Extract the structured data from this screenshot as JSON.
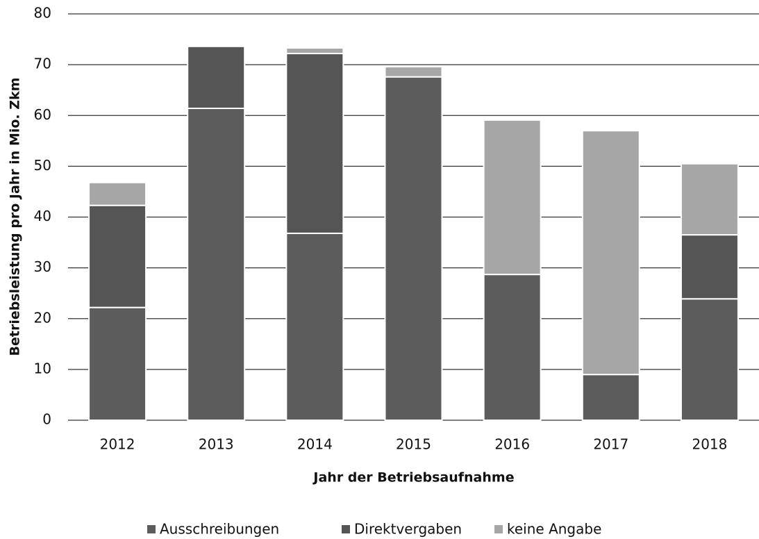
{
  "chart_data": {
    "type": "bar",
    "stacked": true,
    "x_label": "Jahr der Betriebsaufnahme",
    "y_label": "Betriebsleistung pro Jahr in Mio. Zkm",
    "categories": [
      "2012",
      "2013",
      "2014",
      "2015",
      "2016",
      "2017",
      "2018"
    ],
    "series": [
      {
        "name": "Ausschreibungen",
        "color": "#5c5c5c",
        "values": [
          22.2,
          61.4,
          36.8,
          67.6,
          28.7,
          9.0,
          23.9
        ]
      },
      {
        "name": "Direktvergaben",
        "color": "#555555",
        "values": [
          20.1,
          12.2,
          35.4,
          0,
          0,
          0,
          12.6
        ]
      },
      {
        "name": "keine Angabe",
        "color": "#a6a6a6",
        "values": [
          4.5,
          0,
          1.1,
          2.0,
          30.4,
          48.0,
          14.0
        ]
      }
    ],
    "ylim": [
      0,
      80
    ],
    "yticks": [
      0,
      10,
      20,
      30,
      40,
      50,
      60,
      70,
      80
    ],
    "grid": true,
    "legend": "bottom"
  }
}
